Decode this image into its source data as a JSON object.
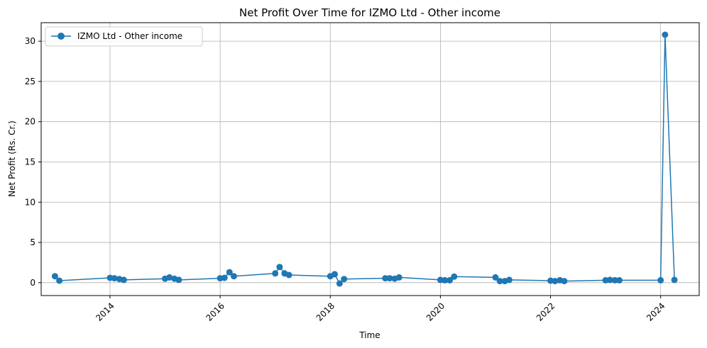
{
  "chart_data": {
    "type": "line",
    "title": "Net Profit Over Time for IZMO Ltd - Other income",
    "xlabel": "Time",
    "ylabel": "Net Profit (Rs. Cr.)",
    "xlim": [
      2012.75,
      2024.7
    ],
    "ylim": [
      -1.6,
      32.3
    ],
    "xticks": [
      {
        "value": 2014,
        "label": "2014"
      },
      {
        "value": 2016,
        "label": "2016"
      },
      {
        "value": 2018,
        "label": "2018"
      },
      {
        "value": 2020,
        "label": "2020"
      },
      {
        "value": 2022,
        "label": "2022"
      },
      {
        "value": 2024,
        "label": "2024"
      }
    ],
    "yticks": [
      {
        "value": 0,
        "label": "0"
      },
      {
        "value": 5,
        "label": "5"
      },
      {
        "value": 10,
        "label": "10"
      },
      {
        "value": 15,
        "label": "15"
      },
      {
        "value": 20,
        "label": "20"
      },
      {
        "value": 25,
        "label": "25"
      },
      {
        "value": 30,
        "label": "30"
      }
    ],
    "grid": true,
    "legend_position": "top-left",
    "color": "#1f77b4",
    "series": [
      {
        "name": "IZMO Ltd - Other income",
        "x": [
          2013.0,
          2013.08,
          2014.0,
          2014.08,
          2014.17,
          2014.25,
          2015.0,
          2015.08,
          2015.17,
          2015.25,
          2016.0,
          2016.08,
          2016.17,
          2016.25,
          2017.0,
          2017.08,
          2017.17,
          2017.25,
          2018.0,
          2018.08,
          2018.17,
          2018.25,
          2019.0,
          2019.08,
          2019.17,
          2019.25,
          2020.0,
          2020.08,
          2020.17,
          2020.25,
          2021.0,
          2021.08,
          2021.17,
          2021.25,
          2022.0,
          2022.08,
          2022.17,
          2022.25,
          2023.0,
          2023.08,
          2023.17,
          2023.25,
          2024.0,
          2024.08,
          2024.25
        ],
        "y": [
          0.8,
          0.25,
          0.6,
          0.55,
          0.45,
          0.35,
          0.5,
          0.65,
          0.5,
          0.35,
          0.55,
          0.6,
          1.3,
          0.8,
          1.15,
          1.95,
          1.15,
          0.95,
          0.8,
          1.05,
          -0.1,
          0.45,
          0.55,
          0.55,
          0.5,
          0.65,
          0.35,
          0.3,
          0.3,
          0.75,
          0.65,
          0.2,
          0.2,
          0.35,
          0.25,
          0.2,
          0.3,
          0.2,
          0.3,
          0.35,
          0.3,
          0.3,
          0.3,
          30.8,
          0.35
        ]
      }
    ]
  }
}
